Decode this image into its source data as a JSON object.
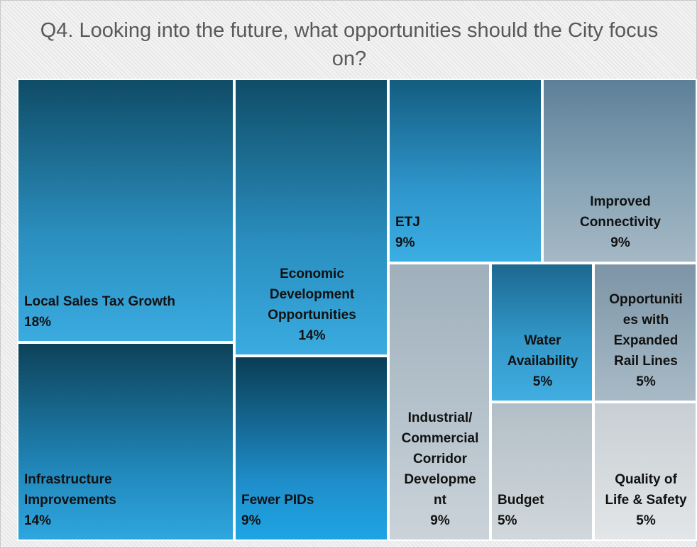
{
  "chart_data": {
    "type": "treemap",
    "title": "Q4. Looking into the future, what opportunities should the City focus on?",
    "items": [
      {
        "label": "Local Sales Tax Growth",
        "value_label": "18%",
        "value": 18
      },
      {
        "label": "Infrastructure Improvements",
        "value_label": "14%",
        "value": 14
      },
      {
        "label": "Economic Development Opportunities",
        "value_label": "14%",
        "value": 14
      },
      {
        "label": "Fewer PIDs",
        "value_label": "9%",
        "value": 9
      },
      {
        "label": "ETJ",
        "value_label": "9%",
        "value": 9
      },
      {
        "label": "Improved Connectivity",
        "value_label": "9%",
        "value": 9
      },
      {
        "label": "Industrial/ Commercial Corridor Development",
        "value_label": "9%",
        "value": 9
      },
      {
        "label": "Water Availability",
        "value_label": "5%",
        "value": 5
      },
      {
        "label": "Opportunities with Expanded Rail Lines",
        "value_label": "5%",
        "value": 5
      },
      {
        "label": "Budget",
        "value_label": "5%",
        "value": 5
      },
      {
        "label": "Quality of Life & Safety",
        "value_label": "5%",
        "value": 5
      }
    ]
  }
}
